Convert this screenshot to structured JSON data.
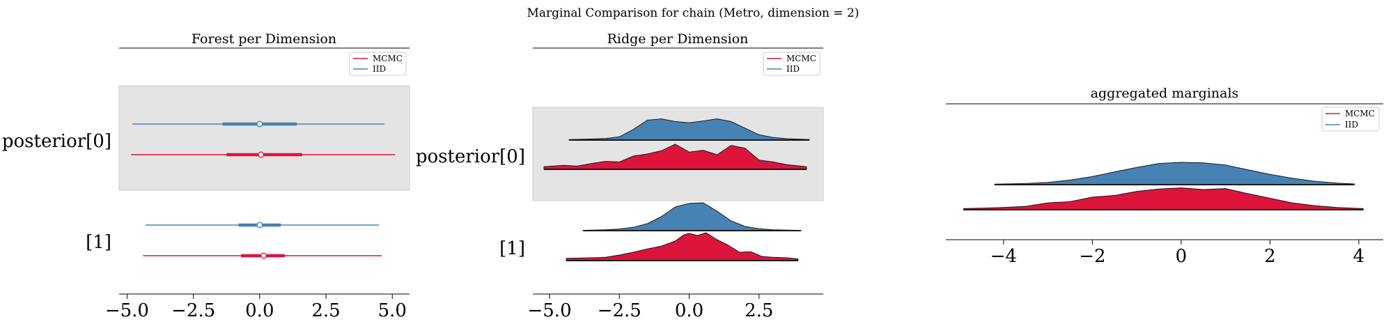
{
  "figure": {
    "suptitle": "Marginal Comparison for chain (Metro, dimension = 2)"
  },
  "colors": {
    "mcmc": "#dc143c",
    "iid": "#4682b4",
    "shade": "#e4e4e4"
  },
  "chart_data": [
    {
      "type": "forest",
      "title": "Forest per Dimension",
      "legend": [
        "MCMC",
        "IID"
      ],
      "legend_position": "top-right",
      "xlim": [
        -5.3,
        5.65
      ],
      "xticks": [
        -5.0,
        -2.5,
        0.0,
        2.5,
        5.0
      ],
      "xtick_labels": [
        "−5.0",
        "−2.5",
        "0.0",
        "2.5",
        "5.0"
      ],
      "ylabels": [
        "posterior[0]",
        "[1]"
      ],
      "series": [
        {
          "name": "IID",
          "group": 0,
          "min": -4.8,
          "q25": -1.4,
          "median": 0.0,
          "q75": 1.4,
          "max": 4.7
        },
        {
          "name": "MCMC",
          "group": 0,
          "min": -4.85,
          "q25": -1.25,
          "median": 0.05,
          "q75": 1.6,
          "max": 5.1
        },
        {
          "name": "IID",
          "group": 1,
          "min": -4.3,
          "q25": -0.8,
          "median": 0.0,
          "q75": 0.8,
          "max": 4.5
        },
        {
          "name": "MCMC",
          "group": 1,
          "min": -4.4,
          "q25": -0.7,
          "median": 0.15,
          "q75": 0.95,
          "max": 4.6
        }
      ]
    },
    {
      "type": "ridge",
      "title": "Ridge per Dimension",
      "legend": [
        "MCMC",
        "IID"
      ],
      "legend_position": "top-right",
      "xlim": [
        -5.6,
        4.8
      ],
      "xticks": [
        -5.0,
        -2.5,
        0.0,
        2.5
      ],
      "xtick_labels": [
        "−5.0",
        "−2.5",
        "0.0",
        "2.5"
      ],
      "ylabels": [
        "posterior[0]",
        "[1]"
      ],
      "series": [
        {
          "name": "IID",
          "group": 0,
          "x": [
            -4.3,
            -3.5,
            -3.0,
            -2.5,
            -2.0,
            -1.5,
            -1.0,
            -0.5,
            0.0,
            0.5,
            1.0,
            1.5,
            2.0,
            2.5,
            3.0,
            3.5,
            4.3
          ],
          "y": [
            0.02,
            0.04,
            0.06,
            0.12,
            0.4,
            0.75,
            0.8,
            0.7,
            0.65,
            0.72,
            0.8,
            0.7,
            0.45,
            0.2,
            0.1,
            0.05,
            0.02
          ]
        },
        {
          "name": "MCMC",
          "group": 0,
          "x": [
            -5.2,
            -4.5,
            -4.0,
            -3.5,
            -3.0,
            -2.5,
            -2.0,
            -1.5,
            -1.0,
            -0.5,
            0.0,
            0.5,
            1.0,
            1.5,
            2.0,
            2.5,
            3.0,
            3.5,
            4.2
          ],
          "y": [
            0.1,
            0.15,
            0.12,
            0.22,
            0.3,
            0.28,
            0.5,
            0.58,
            0.7,
            0.95,
            0.65,
            0.72,
            0.55,
            0.9,
            0.8,
            0.35,
            0.28,
            0.18,
            0.1
          ]
        },
        {
          "name": "IID",
          "group": 1,
          "x": [
            -3.8,
            -3.0,
            -2.5,
            -2.0,
            -1.5,
            -1.0,
            -0.5,
            0.0,
            0.5,
            1.0,
            1.5,
            2.0,
            2.5,
            3.0,
            4.0
          ],
          "y": [
            0.01,
            0.03,
            0.06,
            0.12,
            0.25,
            0.5,
            0.85,
            0.98,
            1.0,
            0.7,
            0.35,
            0.15,
            0.07,
            0.03,
            0.01
          ]
        },
        {
          "name": "MCMC",
          "group": 1,
          "x": [
            -4.4,
            -3.5,
            -3.0,
            -2.5,
            -2.0,
            -1.5,
            -1.0,
            -0.5,
            -0.2,
            0.0,
            0.3,
            0.6,
            1.0,
            1.4,
            1.8,
            2.2,
            2.6,
            3.0,
            3.5,
            3.9
          ],
          "y": [
            0.08,
            0.1,
            0.12,
            0.2,
            0.3,
            0.42,
            0.52,
            0.7,
            0.92,
            0.98,
            0.9,
            1.0,
            0.75,
            0.55,
            0.3,
            0.32,
            0.15,
            0.12,
            0.1,
            0.06
          ]
        }
      ]
    },
    {
      "type": "ridge",
      "title": "aggregated marginals",
      "legend": [
        "MCMC",
        "IID"
      ],
      "legend_position": "top-right",
      "xlim": [
        -5.3,
        4.55
      ],
      "xticks": [
        -4,
        -2,
        0,
        2,
        4
      ],
      "xtick_labels": [
        "−4",
        "−2",
        "0",
        "2",
        "4"
      ],
      "series": [
        {
          "name": "IID",
          "group": 0,
          "x": [
            -4.2,
            -3.5,
            -3.0,
            -2.5,
            -2.0,
            -1.5,
            -1.0,
            -0.5,
            0.0,
            0.5,
            1.0,
            1.5,
            2.0,
            2.5,
            3.0,
            3.5,
            3.9
          ],
          "y": [
            0.02,
            0.05,
            0.1,
            0.2,
            0.35,
            0.55,
            0.75,
            0.92,
            0.97,
            0.95,
            0.85,
            0.65,
            0.45,
            0.28,
            0.15,
            0.07,
            0.03
          ]
        },
        {
          "name": "MCMC",
          "group": 0,
          "x": [
            -4.9,
            -4.5,
            -4.0,
            -3.5,
            -3.0,
            -2.5,
            -2.0,
            -1.5,
            -1.0,
            -0.5,
            0.0,
            0.5,
            1.0,
            1.5,
            2.0,
            2.5,
            3.0,
            3.5,
            4.1
          ],
          "y": [
            0.05,
            0.07,
            0.1,
            0.15,
            0.3,
            0.35,
            0.55,
            0.62,
            0.8,
            0.9,
            0.95,
            0.88,
            0.92,
            0.7,
            0.5,
            0.3,
            0.18,
            0.1,
            0.05
          ]
        }
      ]
    }
  ]
}
